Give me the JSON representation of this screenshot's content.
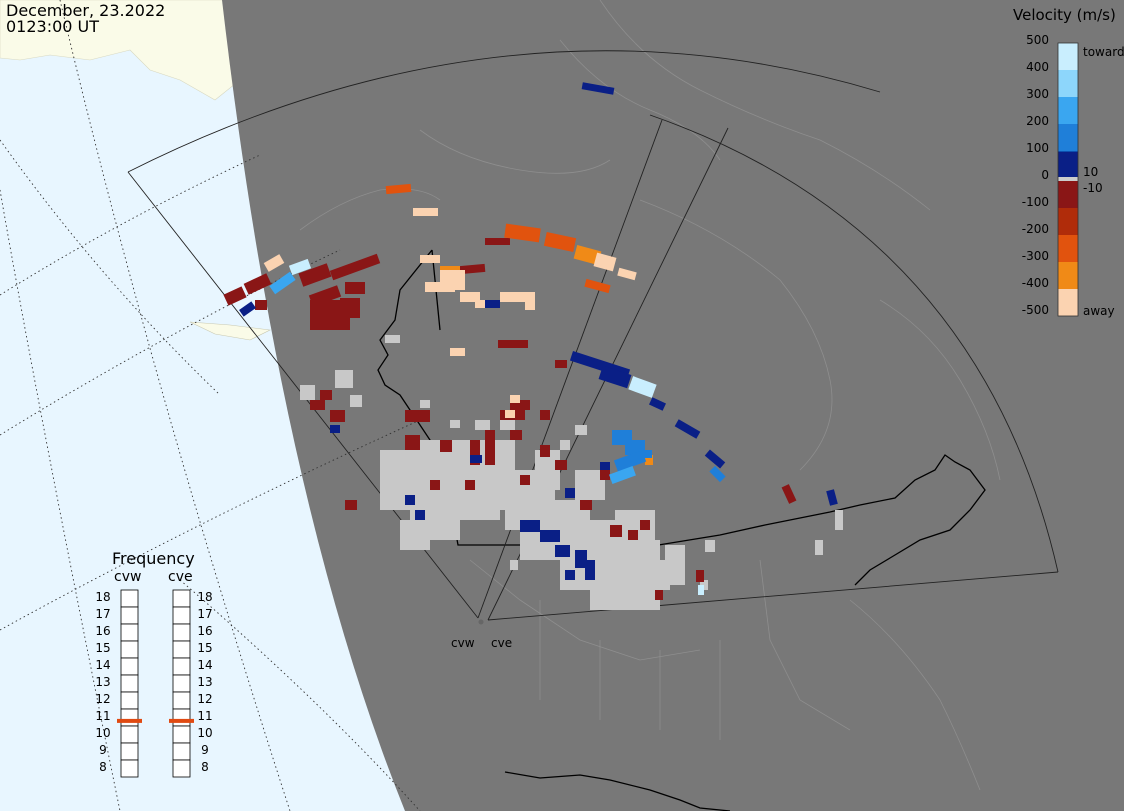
{
  "header": {
    "date": "December, 23.2022",
    "time": "0123:00 UT"
  },
  "legend": {
    "title": "Velocity (m/s)",
    "ticks": [
      "500",
      "400",
      "300",
      "200",
      "100",
      "0",
      "-100",
      "-200",
      "-300",
      "-400",
      "-500"
    ],
    "toward_label": "toward",
    "away_label": "away",
    "pos_threshold": "10",
    "neg_threshold": "-10",
    "colors": [
      "#c9eefe",
      "#8dd6fb",
      "#3aa6f0",
      "#1f7fd9",
      "#0d50b0",
      "#0a1f86",
      "#8a1616",
      "#b02c0a",
      "#e1530e",
      "#f08a17",
      "#fbd3b1"
    ],
    "ground_scatter_color": "#c8c8c8"
  },
  "frequency": {
    "title": "Frequency",
    "radars": [
      {
        "name": "cvw",
        "freq_mhz": 10.8
      },
      {
        "name": "cve",
        "freq_mhz": 10.8
      }
    ],
    "scale": [
      "18",
      "17",
      "16",
      "15",
      "14",
      "13",
      "12",
      "11",
      "10",
      "9",
      "8"
    ],
    "marker_color": "#e04a12"
  },
  "sites": {
    "cvw_label": "cvw",
    "cve_label": "cve"
  },
  "map_colors": {
    "ocean": "#e8f6ff",
    "land_light": "#fafbe8",
    "night": "#787878"
  }
}
